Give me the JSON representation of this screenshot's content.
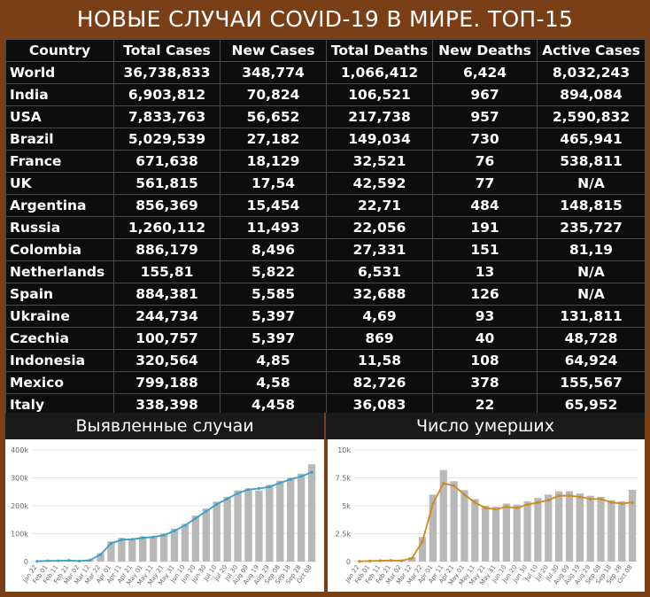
{
  "title": "НОВЫЕ СЛУЧАИ COVID-19 В МИРЕ. ТОП-15",
  "colors": {
    "background": "#7b3f17",
    "yellow_header": "#f6f232",
    "red_header": "#f07474",
    "cases_line": "#3aa0c8",
    "deaths_line": "#d08a1e",
    "bars": "#b8b8b8"
  },
  "table": {
    "headers": [
      "Country",
      "Total Cases",
      "New Cases",
      "Total Deaths",
      "New Deaths",
      "Active Cases"
    ],
    "rows": [
      [
        "World",
        "36,738,833",
        "348,774",
        "1,066,412",
        "6,424",
        "8,032,243"
      ],
      [
        "India",
        "6,903,812",
        "70,824",
        "106,521",
        "967",
        "894,084"
      ],
      [
        "USA",
        "7,833,763",
        "56,652",
        "217,738",
        "957",
        "2,590,832"
      ],
      [
        "Brazil",
        "5,029,539",
        "27,182",
        "149,034",
        "730",
        "465,941"
      ],
      [
        "France",
        "671,638",
        "18,129",
        "32,521",
        "76",
        "538,811"
      ],
      [
        "UK",
        "561,815",
        "17,54",
        "42,592",
        "77",
        "N/A"
      ],
      [
        "Argentina",
        "856,369",
        "15,454",
        "22,71",
        "484",
        "148,815"
      ],
      [
        "Russia",
        "1,260,112",
        "11,493",
        "22,056",
        "191",
        "235,727"
      ],
      [
        "Colombia",
        "886,179",
        "8,496",
        "27,331",
        "151",
        "81,19"
      ],
      [
        "Netherlands",
        "155,81",
        "5,822",
        "6,531",
        "13",
        "N/A"
      ],
      [
        "Spain",
        "884,381",
        "5,585",
        "32,688",
        "126",
        "N/A"
      ],
      [
        "Ukraine",
        "244,734",
        "5,397",
        "4,69",
        "93",
        "131,811"
      ],
      [
        "Czechia",
        "100,757",
        "5,397",
        "869",
        "40",
        "48,728"
      ],
      [
        "Indonesia",
        "320,564",
        "4,85",
        "11,58",
        "108",
        "64,924"
      ],
      [
        "Mexico",
        "799,188",
        "4,58",
        "82,726",
        "378",
        "155,567"
      ],
      [
        "Italy",
        "338,398",
        "4,458",
        "36,083",
        "22",
        "65,952"
      ]
    ]
  },
  "chart_data": [
    {
      "type": "bar",
      "title": "Выявленные случаи",
      "y_ticks": [
        "0",
        "100k",
        "200k",
        "300k",
        "400k"
      ],
      "ylim": [
        0,
        400000
      ],
      "x_ticks": [
        "Jan 22",
        "Feb 01",
        "Feb 11",
        "Feb 21",
        "Mar 02",
        "Mar 12",
        "Mar 22",
        "Apr 01",
        "Apr 11",
        "Apr 21",
        "May 01",
        "May 11",
        "May 21",
        "May 31",
        "Jun 10",
        "Jun 20",
        "Jun 30",
        "Jul 10",
        "Jul 20",
        "Jul 30",
        "Aug 09",
        "Aug 19",
        "Aug 29",
        "Sep 08",
        "Sep 18",
        "Sep 28",
        "Oct 08"
      ],
      "series": [
        {
          "type": "line",
          "values": [
            1000,
            3000,
            3000,
            4000,
            2000,
            5000,
            25000,
            65000,
            78000,
            80000,
            85000,
            88000,
            95000,
            110000,
            130000,
            155000,
            180000,
            205000,
            225000,
            245000,
            258000,
            262000,
            268000,
            282000,
            295000,
            305000,
            320000
          ]
        },
        {
          "type": "bar",
          "values": [
            1000,
            3000,
            4000,
            3500,
            2000,
            6000,
            30000,
            72000,
            85000,
            78000,
            90000,
            87000,
            100000,
            118000,
            135000,
            165000,
            190000,
            215000,
            232000,
            255000,
            262000,
            255000,
            275000,
            290000,
            300000,
            315000,
            348774
          ]
        }
      ]
    },
    {
      "type": "bar",
      "title": "Число умерших",
      "y_ticks": [
        "0",
        "2.5k",
        "5k",
        "7.5k",
        "10k"
      ],
      "ylim": [
        0,
        10000
      ],
      "x_ticks": [
        "Jan 22",
        "Feb 01",
        "Feb 11",
        "Feb 21",
        "Mar 02",
        "Mar 12",
        "Mar 22",
        "Apr 01",
        "Apr 11",
        "Apr 21",
        "May 01",
        "May 11",
        "May 21",
        "May 31",
        "Jun 10",
        "Jun 20",
        "Jun 30",
        "Jul 10",
        "Jul 20",
        "Jul 30",
        "Aug 09",
        "Aug 19",
        "Aug 29",
        "Sep 08",
        "Sep 18",
        "Sep 28",
        "Oct 08"
      ],
      "series": [
        {
          "type": "line",
          "values": [
            20,
            50,
            80,
            100,
            80,
            300,
            1800,
            5200,
            7000,
            6800,
            6000,
            5300,
            4800,
            4700,
            4900,
            4800,
            5100,
            5300,
            5500,
            5900,
            5900,
            5800,
            5600,
            5600,
            5300,
            5200,
            5300
          ]
        },
        {
          "type": "bar",
          "values": [
            20,
            60,
            100,
            120,
            90,
            400,
            2200,
            6000,
            8200,
            7200,
            6400,
            5600,
            5000,
            4900,
            5200,
            5100,
            5400,
            5700,
            6000,
            6300,
            6300,
            6100,
            5900,
            5800,
            5500,
            5400,
            6424
          ]
        }
      ]
    }
  ]
}
